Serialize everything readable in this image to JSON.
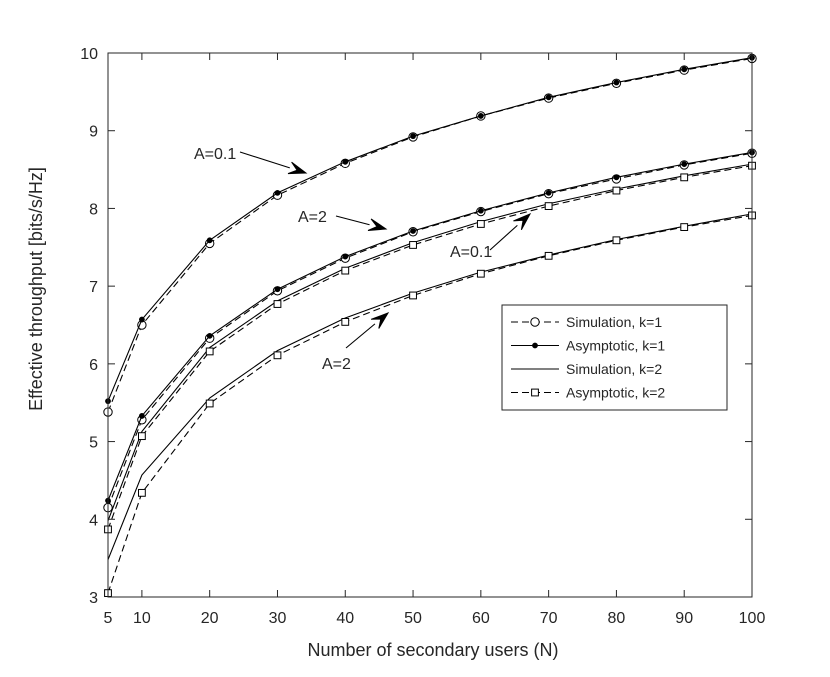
{
  "chart_data": {
    "type": "line",
    "title": "",
    "xlabel": "Number of secondary users (N)",
    "ylabel": "Effective throughput [bits/s/Hz]",
    "xlim": [
      5,
      100
    ],
    "ylim": [
      3,
      10
    ],
    "xticks": [
      5,
      10,
      20,
      30,
      40,
      50,
      60,
      70,
      80,
      90,
      100
    ],
    "yticks": [
      3,
      4,
      5,
      6,
      7,
      8,
      9,
      10
    ],
    "grid": false,
    "legend_position": "center-right",
    "x": [
      5,
      10,
      20,
      30,
      40,
      50,
      60,
      70,
      80,
      90,
      100
    ],
    "series": [
      {
        "name": "Simulation, k=1",
        "group": "k1-A0.1",
        "line": "dashed",
        "marker": "circle",
        "values": [
          5.38,
          6.5,
          7.55,
          8.17,
          8.58,
          8.92,
          9.19,
          9.42,
          9.61,
          9.78,
          9.93
        ]
      },
      {
        "name": "Asymptotic, k=1",
        "group": "k1-A0.1",
        "line": "solid",
        "marker": "dot",
        "values": [
          5.52,
          6.57,
          7.59,
          8.2,
          8.6,
          8.93,
          9.19,
          9.43,
          9.62,
          9.79,
          9.94
        ]
      },
      {
        "name": "Simulation, k=1",
        "group": "k1-A2",
        "line": "dashed",
        "marker": "circle",
        "values": [
          4.15,
          5.28,
          6.33,
          6.94,
          7.36,
          7.7,
          7.96,
          8.19,
          8.38,
          8.56,
          8.71
        ]
      },
      {
        "name": "Asymptotic, k=1",
        "group": "k1-A2",
        "line": "solid",
        "marker": "dot",
        "values": [
          4.24,
          5.33,
          6.36,
          6.96,
          7.38,
          7.71,
          7.97,
          8.2,
          8.4,
          8.57,
          8.72
        ]
      },
      {
        "name": "Simulation, k=2",
        "group": "k2-A0.1",
        "line": "solid",
        "marker": "none",
        "values": [
          3.98,
          5.13,
          6.21,
          6.81,
          7.23,
          7.56,
          7.83,
          8.06,
          8.25,
          8.42,
          8.57
        ]
      },
      {
        "name": "Asymptotic, k=2",
        "group": "k2-A0.1",
        "line": "dashed",
        "marker": "square",
        "values": [
          3.87,
          5.07,
          6.16,
          6.77,
          7.2,
          7.53,
          7.8,
          8.03,
          8.23,
          8.4,
          8.55
        ]
      },
      {
        "name": "Simulation, k=2",
        "group": "k2-A2",
        "line": "solid",
        "marker": "none",
        "values": [
          3.48,
          4.57,
          5.56,
          6.17,
          6.59,
          6.91,
          7.18,
          7.4,
          7.6,
          7.77,
          7.93
        ]
      },
      {
        "name": "Asymptotic, k=2",
        "group": "k2-A2",
        "line": "dashed",
        "marker": "square",
        "values": [
          3.05,
          4.34,
          5.49,
          6.11,
          6.54,
          6.88,
          7.16,
          7.39,
          7.59,
          7.76,
          7.91
        ]
      }
    ],
    "legend": [
      {
        "label": "Simulation, k=1",
        "line": "dashed",
        "marker": "circle"
      },
      {
        "label": "Asymptotic, k=1",
        "line": "solid",
        "marker": "dot"
      },
      {
        "label": "Simulation, k=2",
        "line": "solid",
        "marker": "none"
      },
      {
        "label": "Asymptotic, k=2",
        "line": "dashed",
        "marker": "square"
      }
    ],
    "annotations": [
      {
        "text": "A=0.1",
        "target_x": 35,
        "target_y": 8.4
      },
      {
        "text": "A=2",
        "target_x": 48,
        "target_y": 7.68
      },
      {
        "text": "A=0.1",
        "target_x": 47,
        "target_y": 7.98
      },
      {
        "text": "A=2",
        "target_x": 47,
        "target_y": 6.78
      }
    ],
    "colors": {
      "line": "#000000",
      "axis": "#262626",
      "background": "#ffffff"
    }
  }
}
